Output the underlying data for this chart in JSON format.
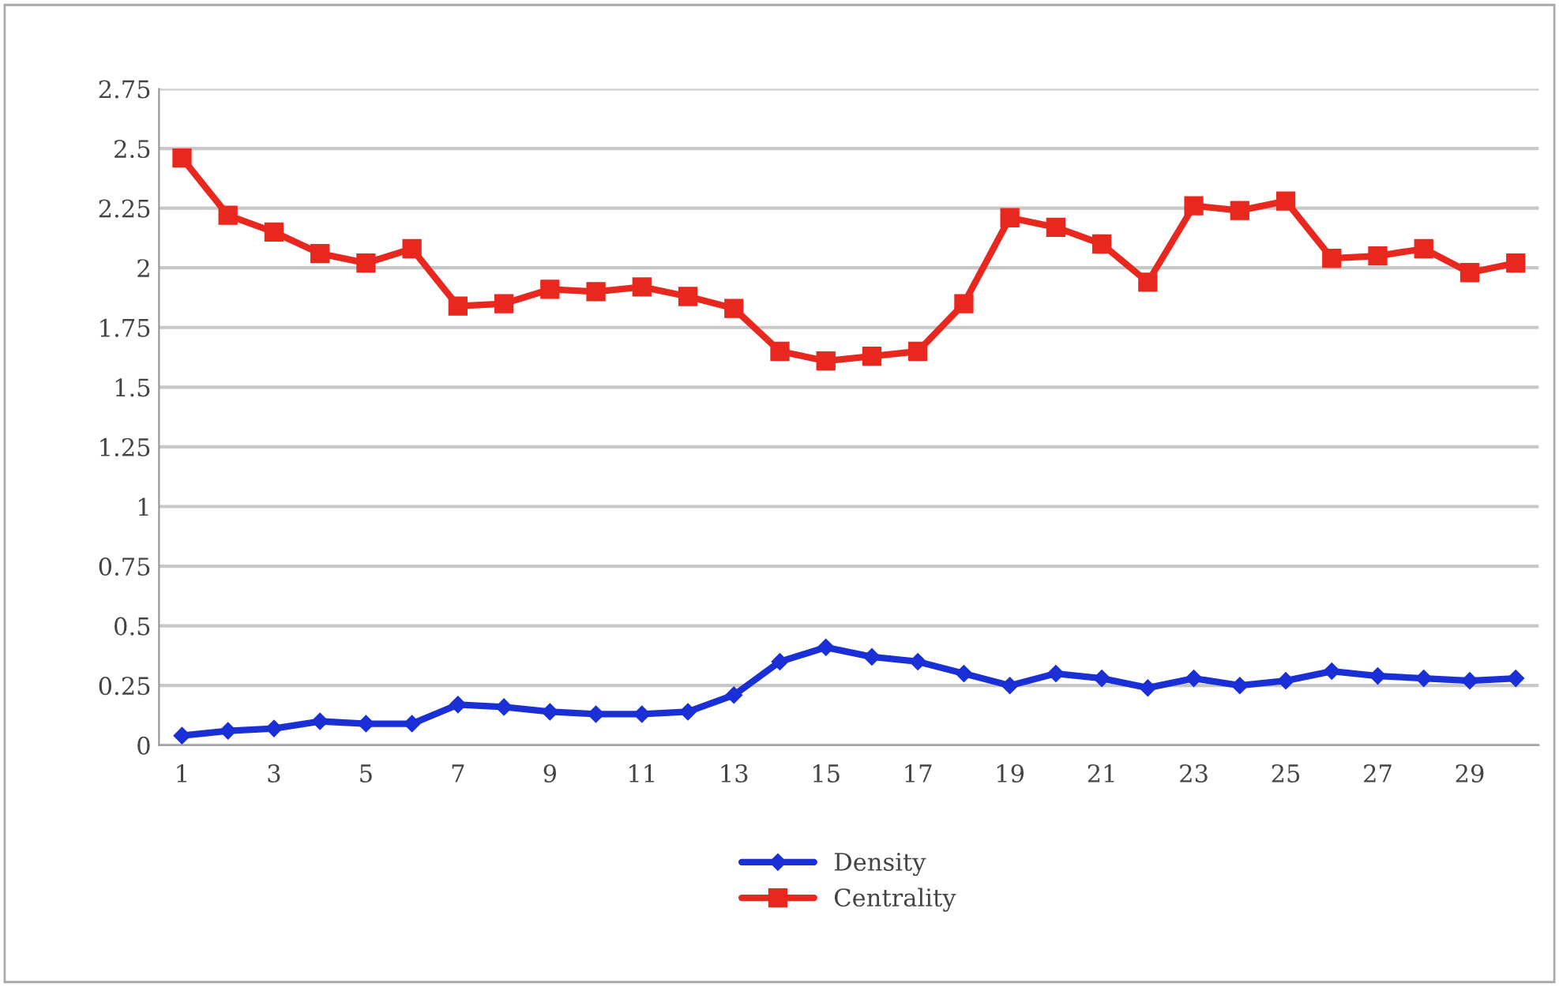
{
  "chart_data": {
    "type": "line",
    "categories": [
      "1",
      null,
      "3",
      null,
      "5",
      null,
      "7",
      null,
      "9",
      null,
      "11",
      null,
      "13",
      null,
      "15",
      null,
      "17",
      null,
      "19",
      null,
      "21",
      null,
      "23",
      null,
      "25",
      null,
      "27",
      null,
      "29",
      null
    ],
    "series": [
      {
        "name": "Density",
        "color": "#1a2fd6",
        "marker": "diamond",
        "values": [
          0.04,
          0.06,
          0.07,
          0.1,
          0.09,
          0.09,
          0.17,
          0.16,
          0.14,
          0.13,
          0.13,
          0.14,
          0.21,
          0.35,
          0.41,
          0.37,
          0.35,
          0.3,
          0.25,
          0.3,
          0.28,
          0.24,
          0.28,
          0.25,
          0.27,
          0.31,
          0.29,
          0.28,
          0.27,
          0.28
        ]
      },
      {
        "name": "Centrality",
        "color": "#e8281e",
        "marker": "square",
        "values": [
          2.46,
          2.22,
          2.15,
          2.06,
          2.02,
          2.08,
          1.84,
          1.85,
          1.91,
          1.9,
          1.92,
          1.88,
          1.83,
          1.65,
          1.61,
          1.63,
          1.65,
          1.85,
          2.21,
          2.17,
          2.1,
          1.94,
          2.26,
          2.24,
          2.28,
          2.04,
          2.05,
          2.08,
          1.98,
          2.02
        ]
      }
    ],
    "ylim": [
      0,
      2.75
    ],
    "yticks": [
      0,
      0.25,
      0.5,
      0.75,
      1,
      1.25,
      1.5,
      1.75,
      2,
      2.25,
      2.5,
      2.75
    ],
    "grid": "y",
    "legend": "bottom",
    "line_style": "solid"
  }
}
